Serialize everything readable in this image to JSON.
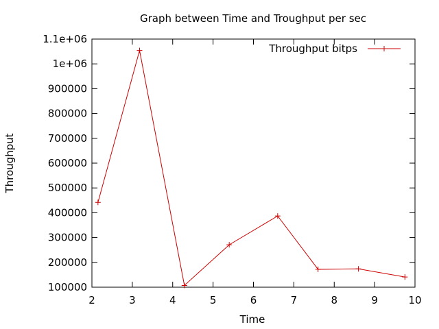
{
  "chart_data": {
    "type": "line",
    "title": "Graph between Time and Troughput per sec",
    "xlabel": "Time",
    "ylabel": "Throughput",
    "xlim": [
      2,
      10
    ],
    "ylim": [
      100000,
      1100000
    ],
    "x_ticks": [
      "2",
      "3",
      "4",
      "5",
      "6",
      "7",
      "8",
      "9",
      "10"
    ],
    "y_ticks": [
      "100000",
      "200000",
      "300000",
      "400000",
      "500000",
      "600000",
      "700000",
      "800000",
      "900000",
      "1e+06",
      "1.1e+06"
    ],
    "grid": false,
    "legend_position": "top-right",
    "series": [
      {
        "name": "Throughput bitps",
        "color": "#cc0000",
        "marker": "plus",
        "x": [
          2.15,
          3.18,
          4.29,
          5.4,
          6.6,
          7.6,
          8.6,
          9.75
        ],
        "y": [
          442000,
          1054000,
          107000,
          271000,
          387000,
          172000,
          174000,
          141000
        ]
      }
    ]
  }
}
